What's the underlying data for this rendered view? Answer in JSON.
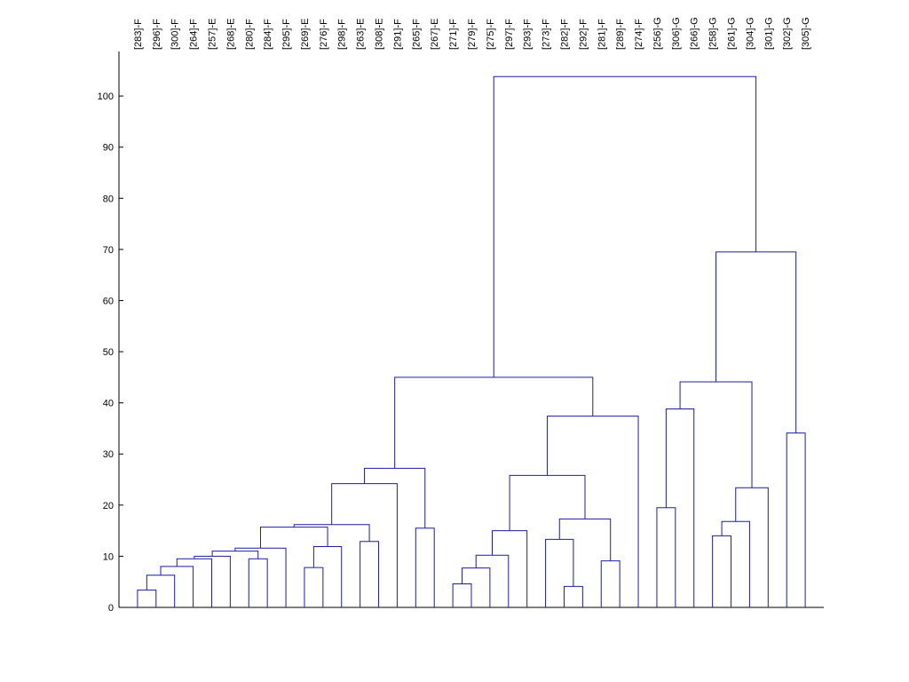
{
  "chart_data": {
    "type": "dendrogram",
    "color": "#1c1ca8",
    "categories": [
      "[283]-F",
      "[296]-F",
      "[300]-F",
      "[264]-F",
      "[257]-E",
      "[268]-E",
      "[280]-F",
      "[284]-F",
      "[295]-F",
      "[269]-E",
      "[276]-F",
      "[298]-F",
      "[263]-E",
      "[308]-E",
      "[291]-F",
      "[265]-F",
      "[267]-E",
      "[271]-F",
      "[279]-F",
      "[275]-F",
      "[297]-F",
      "[293]-F",
      "[273]-F",
      "[282]-F",
      "[292]-F",
      "[281]-F",
      "[289]-F",
      "[274]-F",
      "[256]-G",
      "[306]-G",
      "[266]-G",
      "[258]-G",
      "[261]-G",
      "[304]-G",
      "[301]-G",
      "[302]-G",
      "[305]-G"
    ],
    "merges": [
      [
        0,
        1,
        3.4
      ],
      [
        37,
        2,
        6.3
      ],
      [
        38,
        3,
        8.0
      ],
      [
        39,
        4,
        9.5
      ],
      [
        40,
        5,
        10.0
      ],
      [
        6,
        7,
        9.5
      ],
      [
        41,
        42,
        11.0
      ],
      [
        43,
        8,
        11.6
      ],
      [
        9,
        10,
        7.8
      ],
      [
        45,
        11,
        11.9
      ],
      [
        12,
        13,
        12.9
      ],
      [
        44,
        46,
        15.7
      ],
      [
        48,
        47,
        16.2
      ],
      [
        49,
        14,
        24.2
      ],
      [
        15,
        16,
        15.5
      ],
      [
        50,
        51,
        27.2
      ],
      [
        17,
        18,
        4.6
      ],
      [
        53,
        19,
        7.7
      ],
      [
        54,
        20,
        10.2
      ],
      [
        55,
        21,
        15.0
      ],
      [
        23,
        24,
        4.1
      ],
      [
        22,
        57,
        13.3
      ],
      [
        25,
        26,
        9.1
      ],
      [
        58,
        59,
        17.3
      ],
      [
        56,
        60,
        25.8
      ],
      [
        61,
        27,
        37.4
      ],
      [
        52,
        62,
        45.0
      ],
      [
        28,
        29,
        19.5
      ],
      [
        64,
        30,
        38.8
      ],
      [
        31,
        32,
        14.0
      ],
      [
        66,
        33,
        16.8
      ],
      [
        67,
        34,
        23.4
      ],
      [
        65,
        68,
        44.1
      ],
      [
        35,
        36,
        34.1
      ],
      [
        69,
        70,
        69.5
      ],
      [
        63,
        71,
        103.8
      ]
    ],
    "ylim": [
      0,
      108.7
    ],
    "yticks": [
      0,
      10,
      20,
      30,
      40,
      50,
      60,
      70,
      80,
      90,
      100
    ]
  }
}
